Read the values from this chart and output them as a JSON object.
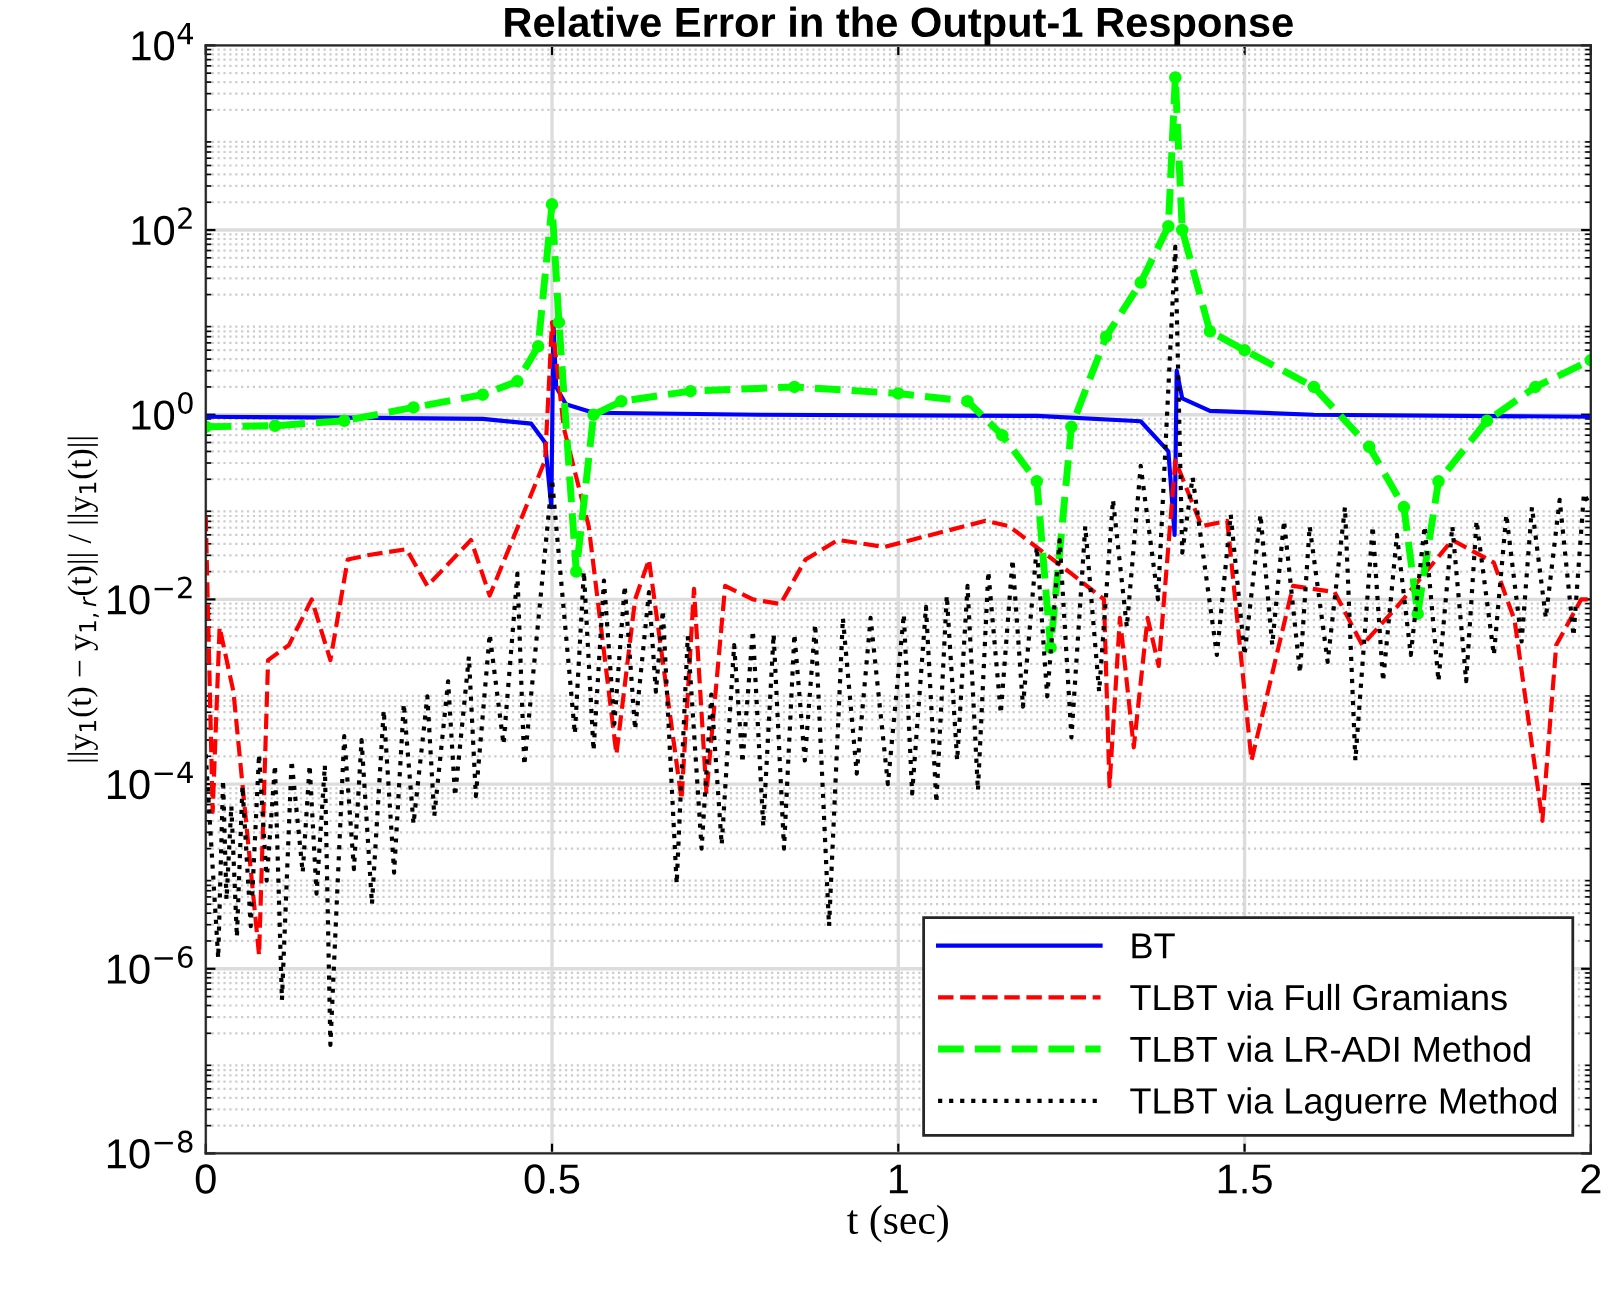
{
  "chart_data": {
    "type": "line",
    "title": "Relative Error in the Output-1 Response",
    "xlabel": "t (sec)",
    "ylabel": "||y$_{1}$(t) − y$_{1,r}$(t)|| / ||y$_{1}$(t)||",
    "log": "y",
    "grid": true,
    "legend": "bottom right",
    "xlim": [
      0,
      2
    ],
    "xticks": [
      0,
      0.5,
      1,
      1.5,
      2
    ],
    "ylim": [
      1e-08,
      10000
    ],
    "yticks": [
      {
        "value": 1e-08,
        "label": "10$^{−8}$"
      },
      {
        "value": 1e-06,
        "label": "10$^{−6}$"
      },
      {
        "value": 0.0001,
        "label": "10$^{−4}$"
      },
      {
        "value": 0.01,
        "label": "10$^{−2}$"
      },
      {
        "value": 1,
        "label": "10$^{0}$"
      },
      {
        "value": 100,
        "label": "10$^{2}$"
      },
      {
        "value": 10000,
        "label": "10$^{4}$"
      }
    ],
    "series": [
      {
        "name": "BT",
        "color": "#0000ff",
        "line_style": "solid",
        "marker": "none",
        "x": [
          0,
          0.2,
          0.4,
          0.47,
          0.49,
          0.499,
          0.502,
          0.506,
          0.52,
          0.56,
          0.8,
          1.2,
          1.35,
          1.39,
          1.399,
          1.402,
          1.41,
          1.45,
          1.6,
          2.0
        ],
        "values": [
          0.95,
          0.93,
          0.9,
          0.8,
          0.5,
          0.1,
          10,
          2,
          1.3,
          1.05,
          1.0,
          0.97,
          0.85,
          0.4,
          0.05,
          3,
          1.5,
          1.1,
          1.0,
          0.95
        ]
      },
      {
        "name": "TLBT via Full Gramians",
        "color": "#ff0000",
        "line_style": "dashed",
        "marker": "none",
        "x": [
          0,
          0.01,
          0.02,
          0.04,
          0.077,
          0.09,
          0.12,
          0.153,
          0.18,
          0.205,
          0.233,
          0.29,
          0.32,
          0.383,
          0.41,
          0.49,
          0.5,
          0.517,
          0.553,
          0.593,
          0.62,
          0.64,
          0.687,
          0.705,
          0.723,
          0.75,
          0.79,
          0.83,
          0.866,
          0.913,
          0.98,
          1.126,
          1.16,
          1.25,
          1.297,
          1.305,
          1.32,
          1.34,
          1.36,
          1.376,
          1.4,
          1.438,
          1.475,
          1.51,
          1.57,
          1.63,
          1.67,
          1.72,
          1.8,
          1.86,
          1.89,
          1.93,
          1.95,
          1.986,
          2.0
        ],
        "values": [
          0.08,
          5e-05,
          0.005,
          0.001,
          1.4e-06,
          0.0022,
          0.0032,
          0.01,
          0.0022,
          0.027,
          0.03,
          0.035,
          0.014,
          0.044,
          0.011,
          0.32,
          10,
          0.72,
          0.062,
          0.00021,
          0.01,
          0.027,
          6.8e-05,
          0.013,
          7.9e-05,
          0.014,
          0.01,
          0.0089,
          0.027,
          0.044,
          0.037,
          0.071,
          0.062,
          0.019,
          0.01,
          9.5e-05,
          0.0063,
          0.00025,
          0.0063,
          0.0019,
          0.32,
          0.062,
          0.071,
          0.00018,
          0.014,
          0.012,
          0.0032,
          0.0083,
          0.044,
          0.025,
          0.0059,
          4e-05,
          0.0032,
          0.01,
          0.01
        ]
      },
      {
        "name": "TLBT via LR-ADI Method",
        "color": "#00ff00",
        "line_style": "dashed",
        "marker": "circle",
        "x": [
          0,
          0.1,
          0.2,
          0.3,
          0.4,
          0.45,
          0.48,
          0.5,
          0.51,
          0.535,
          0.56,
          0.6,
          0.7,
          0.85,
          1.0,
          1.1,
          1.15,
          1.2,
          1.22,
          1.25,
          1.3,
          1.35,
          1.39,
          1.4,
          1.41,
          1.45,
          1.5,
          1.6,
          1.68,
          1.73,
          1.75,
          1.78,
          1.85,
          1.92,
          2.0
        ],
        "values": [
          0.74,
          0.76,
          0.86,
          1.2,
          1.65,
          2.3,
          5.5,
          190,
          10,
          0.02,
          1.0,
          1.4,
          1.8,
          2.0,
          1.7,
          1.4,
          0.6,
          0.19,
          0.003,
          0.74,
          7,
          27,
          110,
          4500,
          100,
          8,
          5,
          2,
          0.45,
          0.1,
          0.007,
          0.19,
          0.86,
          2,
          3.9
        ]
      },
      {
        "name": "TLBT via Laguerre Method",
        "color": "#000000",
        "line_style": "dotted",
        "marker": "none",
        "x": [
          0,
          0.018,
          0.025,
          0.03,
          0.037,
          0.045,
          0.053,
          0.065,
          0.077,
          0.088,
          0.1,
          0.11,
          0.124,
          0.14,
          0.15,
          0.16,
          0.172,
          0.18,
          0.2,
          0.214,
          0.225,
          0.24,
          0.257,
          0.272,
          0.286,
          0.3,
          0.32,
          0.33,
          0.35,
          0.36,
          0.38,
          0.39,
          0.41,
          0.43,
          0.45,
          0.46,
          0.5,
          0.533,
          0.546,
          0.56,
          0.575,
          0.59,
          0.605,
          0.62,
          0.64,
          0.65,
          0.66,
          0.68,
          0.696,
          0.716,
          0.73,
          0.745,
          0.763,
          0.775,
          0.79,
          0.805,
          0.82,
          0.835,
          0.85,
          0.865,
          0.88,
          0.9,
          0.92,
          0.94,
          0.96,
          0.985,
          1.008,
          1.02,
          1.04,
          1.055,
          1.07,
          1.085,
          1.1,
          1.115,
          1.13,
          1.148,
          1.165,
          1.18,
          1.2,
          1.215,
          1.233,
          1.25,
          1.27,
          1.29,
          1.31,
          1.33,
          1.35,
          1.375,
          1.4,
          1.41,
          1.425,
          1.46,
          1.48,
          1.5,
          1.523,
          1.54,
          1.557,
          1.58,
          1.594,
          1.62,
          1.645,
          1.66,
          1.685,
          1.7,
          1.72,
          1.74,
          1.76,
          1.78,
          1.8,
          1.82,
          1.835,
          1.86,
          1.878,
          1.9,
          1.915,
          1.935,
          1.955,
          1.975,
          1.99,
          2.0
        ],
        "values": [
          0.00021,
          1.3e-06,
          0.00011,
          5.6e-06,
          5.8e-05,
          2.2e-06,
          9.5e-05,
          2.9e-06,
          0.00021,
          9e-06,
          0.00016,
          4.6e-07,
          0.00018,
          1.1e-05,
          0.00016,
          6.5e-06,
          0.00016,
          1.5e-07,
          0.00033,
          1.2e-05,
          0.0003,
          5e-06,
          0.00063,
          1.1e-05,
          0.00074,
          3.7e-05,
          0.00089,
          4.5e-05,
          0.0013,
          7.4e-05,
          0.0024,
          7.4e-05,
          0.0042,
          0.00027,
          0.019,
          0.00016,
          0.2,
          0.00035,
          0.02,
          0.00023,
          0.016,
          0.00045,
          0.014,
          0.00039,
          0.012,
          0.001,
          0.0076,
          8.3e-06,
          0.004,
          2e-05,
          0.00093,
          2.2e-05,
          0.0032,
          0.00017,
          0.0046,
          3.5e-05,
          0.0042,
          2e-05,
          0.0042,
          0.00018,
          0.0054,
          2.9e-06,
          0.0063,
          0.00013,
          0.0063,
          0.0001,
          0.0069,
          7.9e-05,
          0.0083,
          6.3e-05,
          0.011,
          0.00018,
          0.014,
          8.5e-05,
          0.02,
          0.00058,
          0.027,
          0.00069,
          0.037,
          0.00089,
          0.044,
          0.00032,
          0.062,
          0.001,
          0.12,
          0.005,
          0.28,
          0.01,
          66,
          0.032,
          0.21,
          0.0025,
          0.083,
          0.0025,
          0.083,
          0.0032,
          0.071,
          0.0016,
          0.062,
          0.0021,
          0.1,
          0.00018,
          0.062,
          0.0013,
          0.05,
          0.0025,
          0.062,
          0.0013,
          0.062,
          0.0013,
          0.071,
          0.0025,
          0.083,
          0.0035,
          0.1,
          0.0063,
          0.12,
          0.004,
          0.14,
          0.1
        ]
      }
    ]
  }
}
